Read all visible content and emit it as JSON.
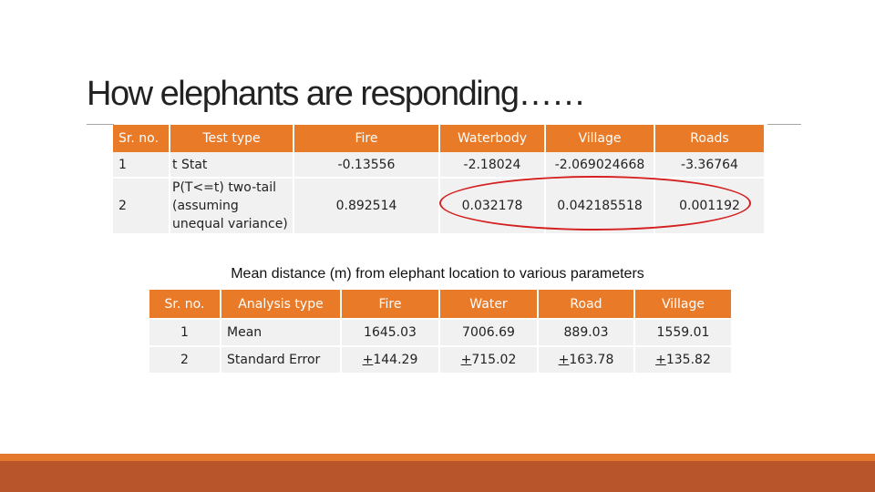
{
  "slide": {
    "title": "How elephants are responding……",
    "caption": "Mean distance (m) from elephant location to various parameters"
  },
  "ttest_table": {
    "headers": [
      "Sr. no.",
      "Test type",
      "Fire",
      "Waterbody",
      "Village",
      "Roads"
    ],
    "rows": [
      [
        "1",
        "t Stat",
        "-0.13556",
        "-2.18024",
        "-2.069024668",
        "-3.36764"
      ],
      [
        "2",
        "P(T<=t) two-tail (assuming unequal variance)",
        "0.892514",
        "0.032178",
        "0.042185518",
        "0.001192"
      ]
    ]
  },
  "distance_table": {
    "headers": [
      "Sr. no.",
      "Analysis type",
      "Fire",
      "Water",
      "Road",
      "Village"
    ],
    "rows": [
      [
        "1",
        "Mean",
        "1645.03",
        "7006.69",
        "889.03",
        "1559.01"
      ],
      [
        "2",
        "Standard Error",
        "144.29",
        "715.02",
        "163.78",
        "135.82"
      ]
    ],
    "pm_symbol": "+"
  },
  "colors": {
    "header_orange": "#e87a28",
    "highlight_red": "#d42020",
    "footer_brown": "#b8552b"
  }
}
